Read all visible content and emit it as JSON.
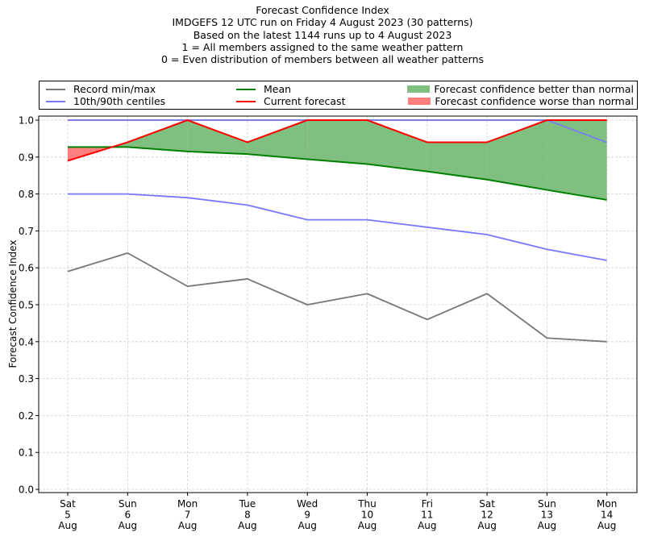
{
  "chart_data": {
    "type": "line",
    "title": "Forecast Confidence Index",
    "subtitle_lines": [
      "IMDGEFS 12 UTC run on Friday 4 August 2023 (30 patterns)",
      "Based on the latest 1144 runs up to 4 August 2023",
      "1 = All members assigned to the same weather pattern",
      "0 = Even distribution of members between all weather patterns"
    ],
    "xlabel": "",
    "ylabel": "Forecast Confidence Index",
    "ylim": [
      0,
      1.0
    ],
    "yticks": [
      "0.0",
      "0.1",
      "0.2",
      "0.3",
      "0.4",
      "0.5",
      "0.6",
      "0.7",
      "0.8",
      "0.9",
      "1.0"
    ],
    "grid": true,
    "legend_position": "top, above plot (3 columns)",
    "categories": [
      {
        "day": "Sat",
        "date": "5",
        "month": "Aug"
      },
      {
        "day": "Sun",
        "date": "6",
        "month": "Aug"
      },
      {
        "day": "Mon",
        "date": "7",
        "month": "Aug"
      },
      {
        "day": "Tue",
        "date": "8",
        "month": "Aug"
      },
      {
        "day": "Wed",
        "date": "9",
        "month": "Aug"
      },
      {
        "day": "Thu",
        "date": "10",
        "month": "Aug"
      },
      {
        "day": "Fri",
        "date": "11",
        "month": "Aug"
      },
      {
        "day": "Sat",
        "date": "12",
        "month": "Aug"
      },
      {
        "day": "Sun",
        "date": "13",
        "month": "Aug"
      },
      {
        "day": "Mon",
        "date": "14",
        "month": "Aug"
      }
    ],
    "series": [
      {
        "name": "Record min/max (max)",
        "key": "record_max",
        "color": "#777777",
        "values": [
          1.0,
          1.0,
          1.0,
          1.0,
          1.0,
          1.0,
          1.0,
          1.0,
          1.0,
          1.0
        ]
      },
      {
        "name": "Record min/max (min)",
        "key": "record_min",
        "color": "#777777",
        "values": [
          0.59,
          0.64,
          0.55,
          0.57,
          0.5,
          0.53,
          0.46,
          0.53,
          0.41,
          0.4
        ]
      },
      {
        "name": "10th/90th centiles (90th)",
        "key": "p90",
        "color": "#7777ff",
        "values": [
          1.0,
          1.0,
          1.0,
          1.0,
          1.0,
          1.0,
          1.0,
          1.0,
          1.0,
          0.94
        ]
      },
      {
        "name": "10th/90th centiles (10th)",
        "key": "p10",
        "color": "#7777ff",
        "values": [
          0.8,
          0.8,
          0.79,
          0.77,
          0.73,
          0.73,
          0.71,
          0.69,
          0.65,
          0.62
        ]
      },
      {
        "name": "Mean",
        "key": "mean",
        "color": "#008000",
        "values": [
          0.927,
          0.927,
          0.915,
          0.908,
          0.894,
          0.881,
          0.861,
          0.839,
          0.811,
          0.784
        ]
      },
      {
        "name": "Current forecast",
        "key": "current",
        "color": "#ff0000",
        "values": [
          0.89,
          0.94,
          1.0,
          0.94,
          1.0,
          1.0,
          0.94,
          0.94,
          1.0,
          1.0
        ]
      }
    ],
    "fills": [
      {
        "name": "Forecast confidence better than normal",
        "color": "#7fbf7f",
        "between": [
          "mean",
          "current"
        ],
        "where": "current > mean"
      },
      {
        "name": "Forecast confidence worse than normal",
        "color": "#ff7f7f",
        "between": [
          "mean",
          "current"
        ],
        "where": "current < mean"
      }
    ]
  },
  "legend": {
    "items": [
      {
        "label": "Record min/max",
        "kind": "line",
        "color": "#777777"
      },
      {
        "label": "10th/90th centiles",
        "kind": "line",
        "color": "#7777ff"
      },
      {
        "label": "Mean",
        "kind": "line",
        "color": "#008000"
      },
      {
        "label": "Current forecast",
        "kind": "line",
        "color": "#ff0000"
      },
      {
        "label": "Forecast confidence better than normal",
        "kind": "patch",
        "color": "#7fbf7f"
      },
      {
        "label": "Forecast confidence worse than normal",
        "kind": "patch",
        "color": "#ff7f7f"
      }
    ]
  }
}
